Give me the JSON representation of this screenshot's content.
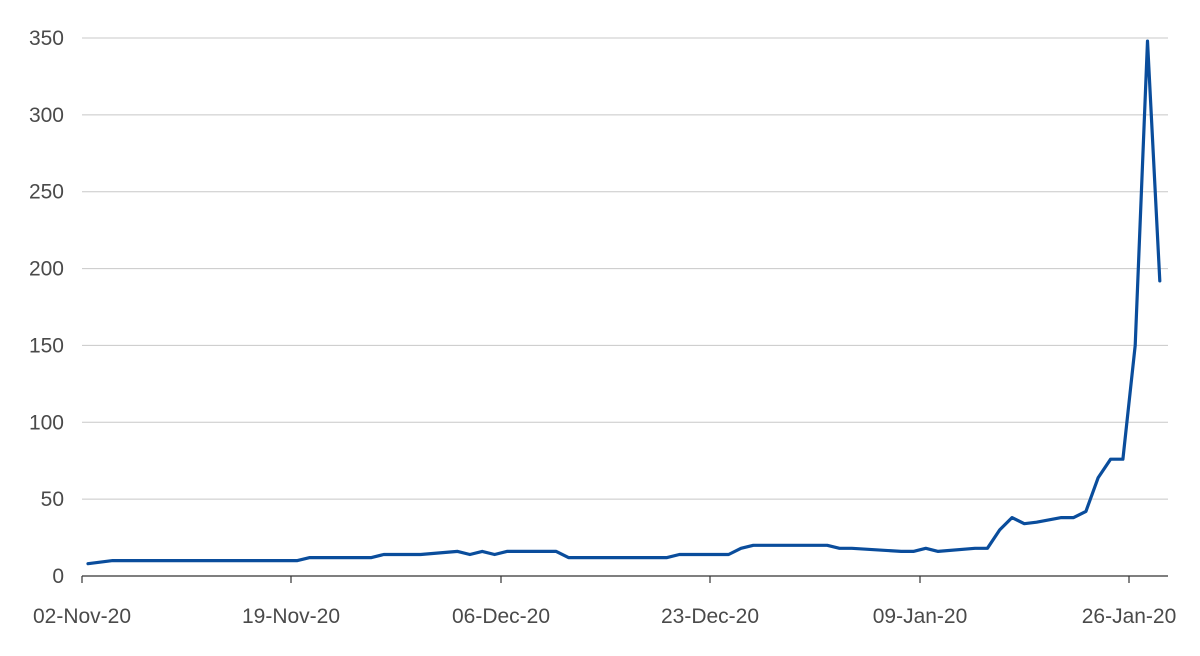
{
  "chart_data": {
    "type": "line",
    "title": "",
    "xlabel": "",
    "ylabel": "",
    "ylim": [
      0,
      350
    ],
    "y_ticks": [
      "0",
      "50",
      "100",
      "150",
      "200",
      "250",
      "300",
      "350"
    ],
    "x_ticks": [
      {
        "label": "02-Nov-20",
        "date": "2020-11-02"
      },
      {
        "label": "19-Nov-20",
        "date": "2020-11-19"
      },
      {
        "label": "06-Dec-20",
        "date": "2020-12-06"
      },
      {
        "label": "23-Dec-20",
        "date": "2020-12-23"
      },
      {
        "label": "09-Jan-20",
        "date": "2021-01-09"
      },
      {
        "label": "26-Jan-20",
        "date": "2021-01-26"
      }
    ],
    "grid": true,
    "line_color": "#0a4d9c",
    "series": [
      {
        "x": [
          "2020-11-02",
          "2020-11-04",
          "2020-11-19",
          "2020-11-20",
          "2020-11-25",
          "2020-11-26",
          "2020-11-29",
          "2020-12-02",
          "2020-12-03",
          "2020-12-04",
          "2020-12-05",
          "2020-12-06",
          "2020-12-10",
          "2020-12-11",
          "2020-12-19",
          "2020-12-20",
          "2020-12-24",
          "2020-12-25",
          "2020-12-26",
          "2021-01-01",
          "2021-01-02",
          "2021-01-03",
          "2021-01-07",
          "2021-01-08",
          "2021-01-09",
          "2021-01-10",
          "2021-01-13",
          "2021-01-14",
          "2021-01-15",
          "2021-01-16",
          "2021-01-17",
          "2021-01-18",
          "2021-01-20",
          "2021-01-21",
          "2021-01-22",
          "2021-01-23",
          "2021-01-24",
          "2021-01-25",
          "2021-01-26",
          "2021-01-27",
          "2021-01-28"
        ],
        "y": [
          8,
          10,
          10,
          12,
          12,
          14,
          14,
          16,
          14,
          16,
          14,
          16,
          16,
          12,
          12,
          14,
          14,
          18,
          20,
          20,
          18,
          18,
          16,
          16,
          18,
          16,
          18,
          18,
          30,
          38,
          34,
          35,
          38,
          38,
          42,
          64,
          76,
          76,
          150,
          348,
          192
        ]
      }
    ]
  }
}
